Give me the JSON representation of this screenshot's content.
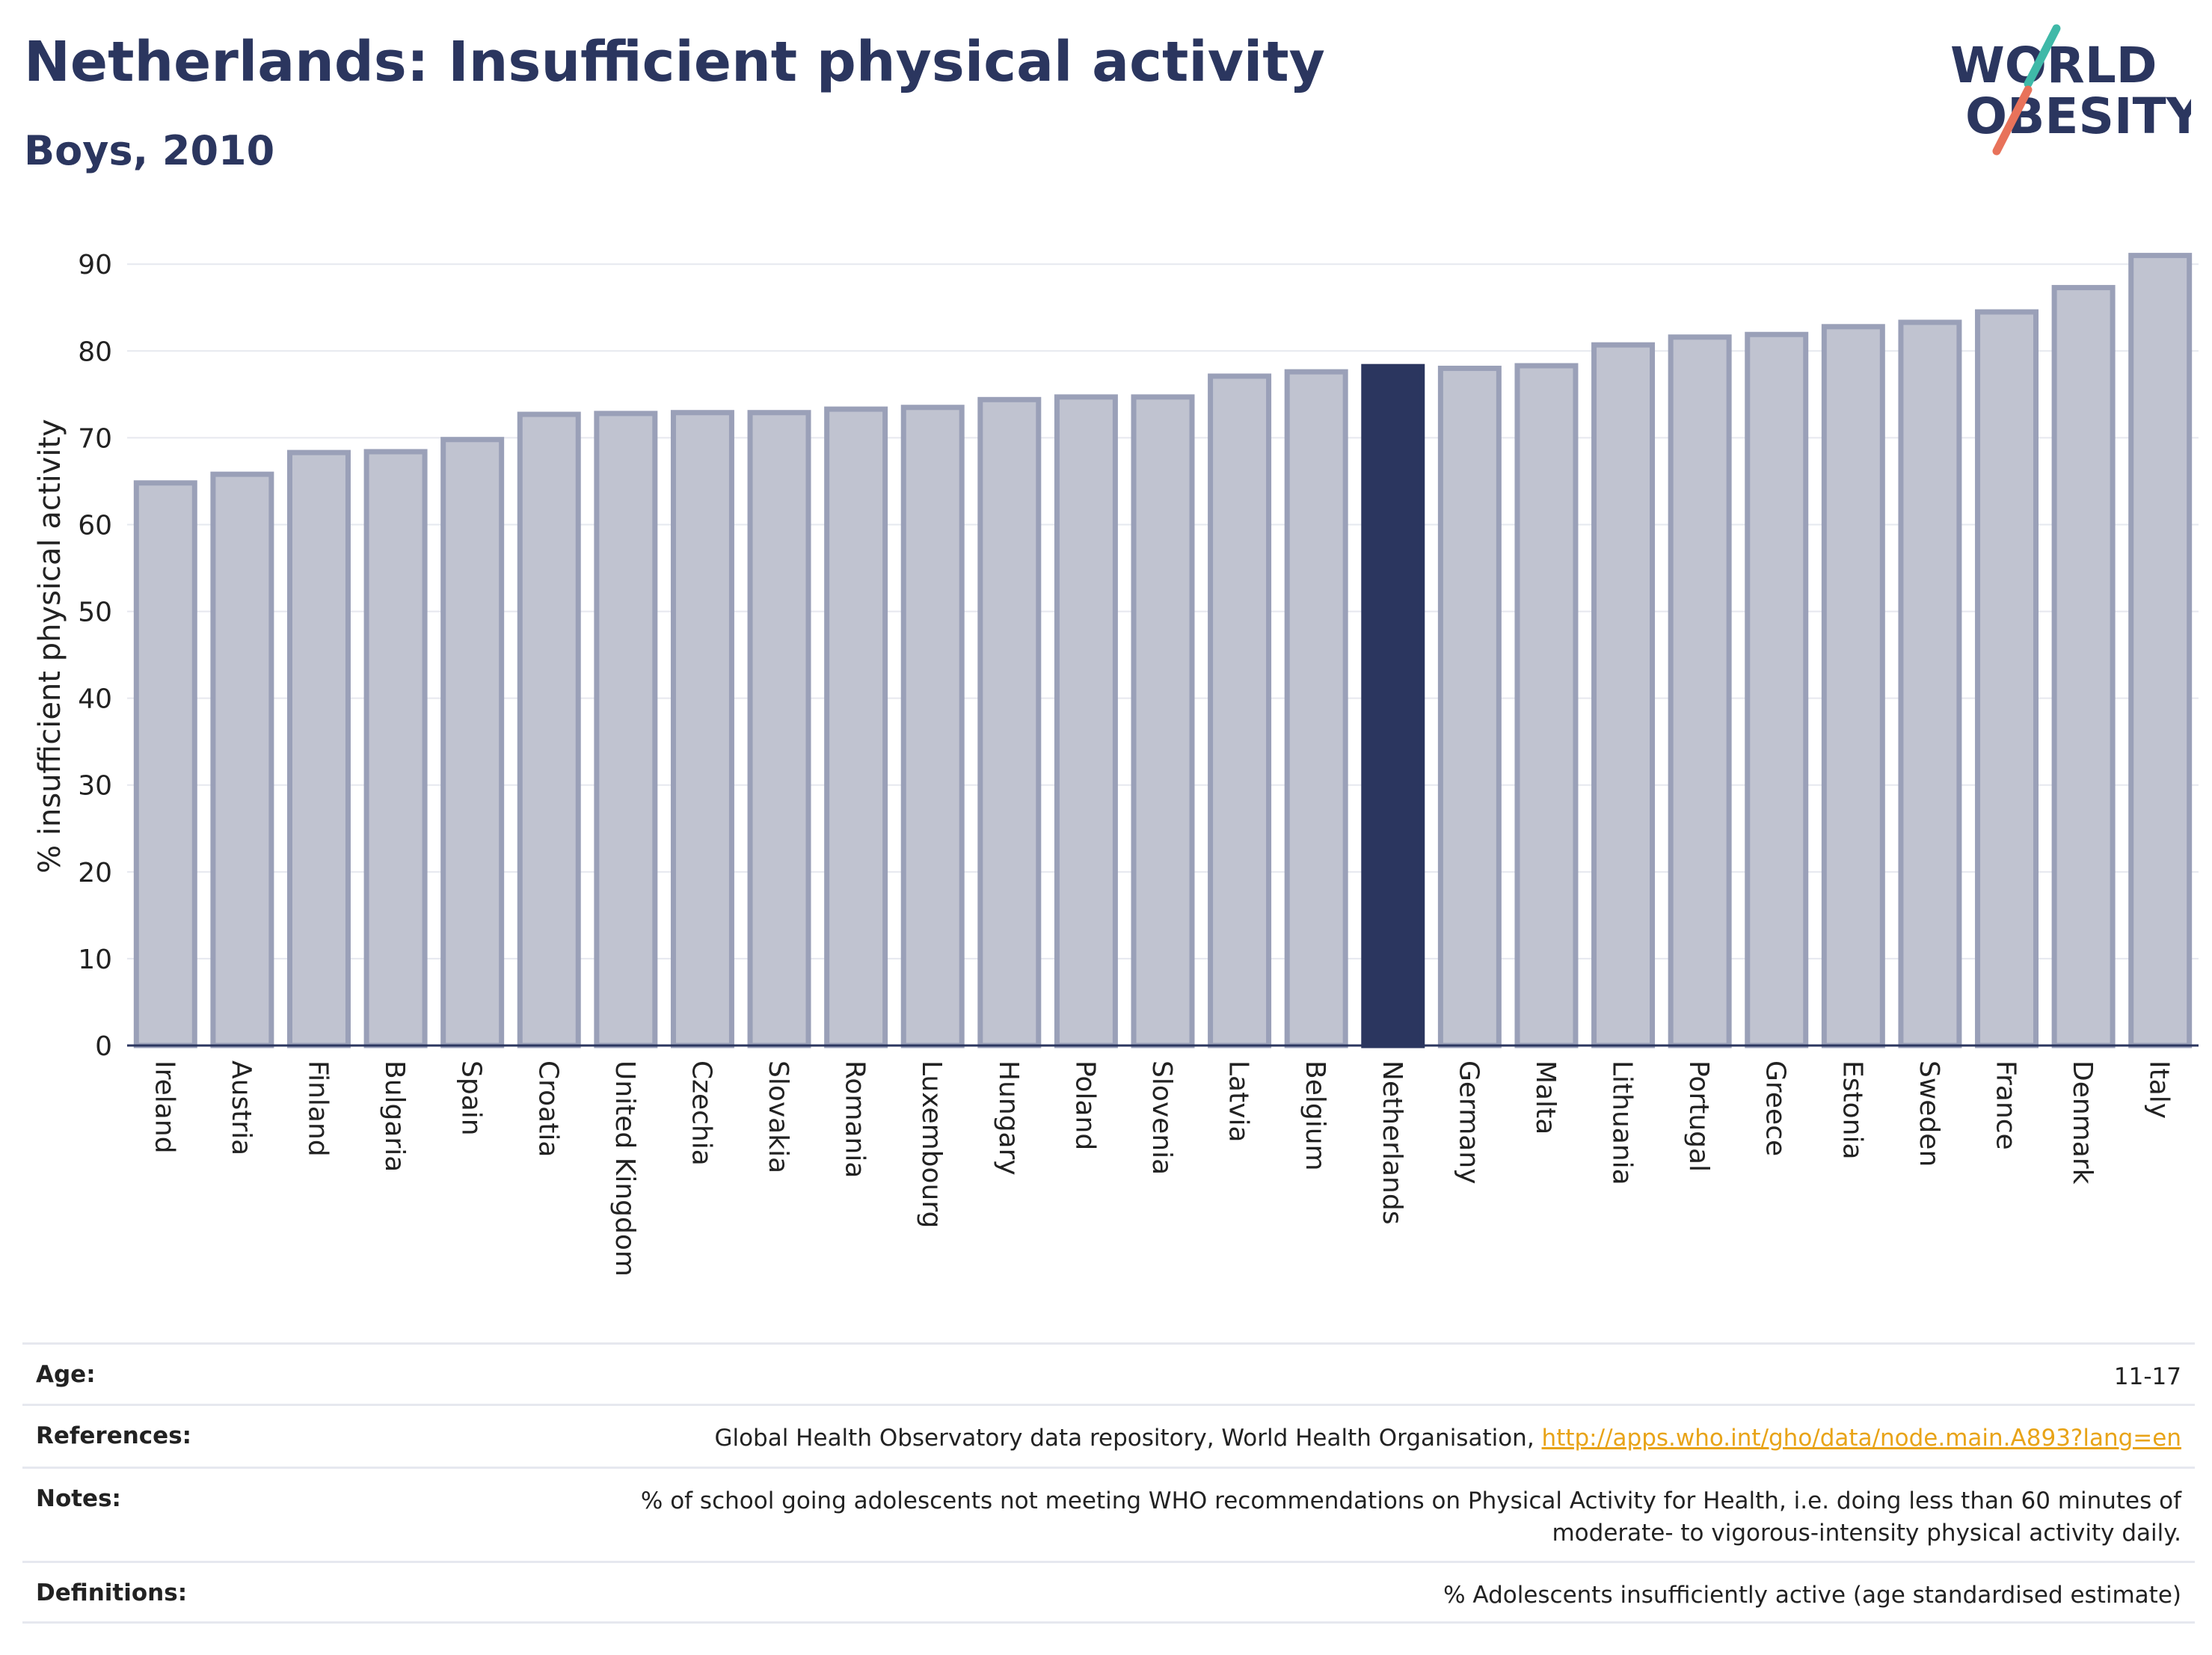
{
  "header": {
    "title": "Netherlands: Insufficient physical activity",
    "subtitle": "Boys, 2010"
  },
  "logo": {
    "line1": "WORLD",
    "line2": "OBESITY",
    "accent_teal": "#3fb9a8",
    "accent_coral": "#e8725a",
    "text_color": "#2b365f"
  },
  "colors": {
    "bar_default_fill": "#c0c3d0",
    "bar_default_stroke": "#9aa0b8",
    "bar_highlight_fill": "#2b365f"
  },
  "chart_data": {
    "type": "bar",
    "title": "Netherlands: Insufficient physical activity",
    "subtitle": "Boys, 2010",
    "xlabel": "",
    "ylabel": "% insufficient physical activity",
    "ylim": [
      0,
      92
    ],
    "yticks": [
      0,
      10,
      20,
      30,
      40,
      50,
      60,
      70,
      80,
      90
    ],
    "grid": true,
    "highlight": "Netherlands",
    "categories": [
      "Ireland",
      "Austria",
      "Finland",
      "Bulgaria",
      "Spain",
      "Croatia",
      "United Kingdom",
      "Czechia",
      "Slovakia",
      "Romania",
      "Luxembourg",
      "Hungary",
      "Poland",
      "Slovenia",
      "Latvia",
      "Belgium",
      "Netherlands",
      "Germany",
      "Malta",
      "Lithuania",
      "Portugal",
      "Greece",
      "Estonia",
      "Sweden",
      "France",
      "Denmark",
      "Italy"
    ],
    "values": [
      64.8,
      65.8,
      68.3,
      68.4,
      69.8,
      72.7,
      72.8,
      72.9,
      72.9,
      73.3,
      73.5,
      74.4,
      74.7,
      74.7,
      77.1,
      77.6,
      78.2,
      78.0,
      78.3,
      80.7,
      81.6,
      81.9,
      82.8,
      83.3,
      84.5,
      87.3,
      91.0
    ]
  },
  "info": {
    "age_label": "Age:",
    "age_value": "11-17",
    "references_label": "References:",
    "references_text": "Global Health Observatory data repository, World Health Organisation, ",
    "references_link": "http://apps.who.int/gho/data/node.main.A893?lang=en",
    "notes_label": "Notes:",
    "notes_line1": "% of school going adolescents not meeting WHO recommendations on Physical Activity for Health, i.e. doing less than 60 minutes of",
    "notes_line2": "moderate- to vigorous-intensity physical activity daily.",
    "definitions_label": "Definitions:",
    "definitions_value": "% Adolescents insufficiently active (age standardised estimate)"
  }
}
